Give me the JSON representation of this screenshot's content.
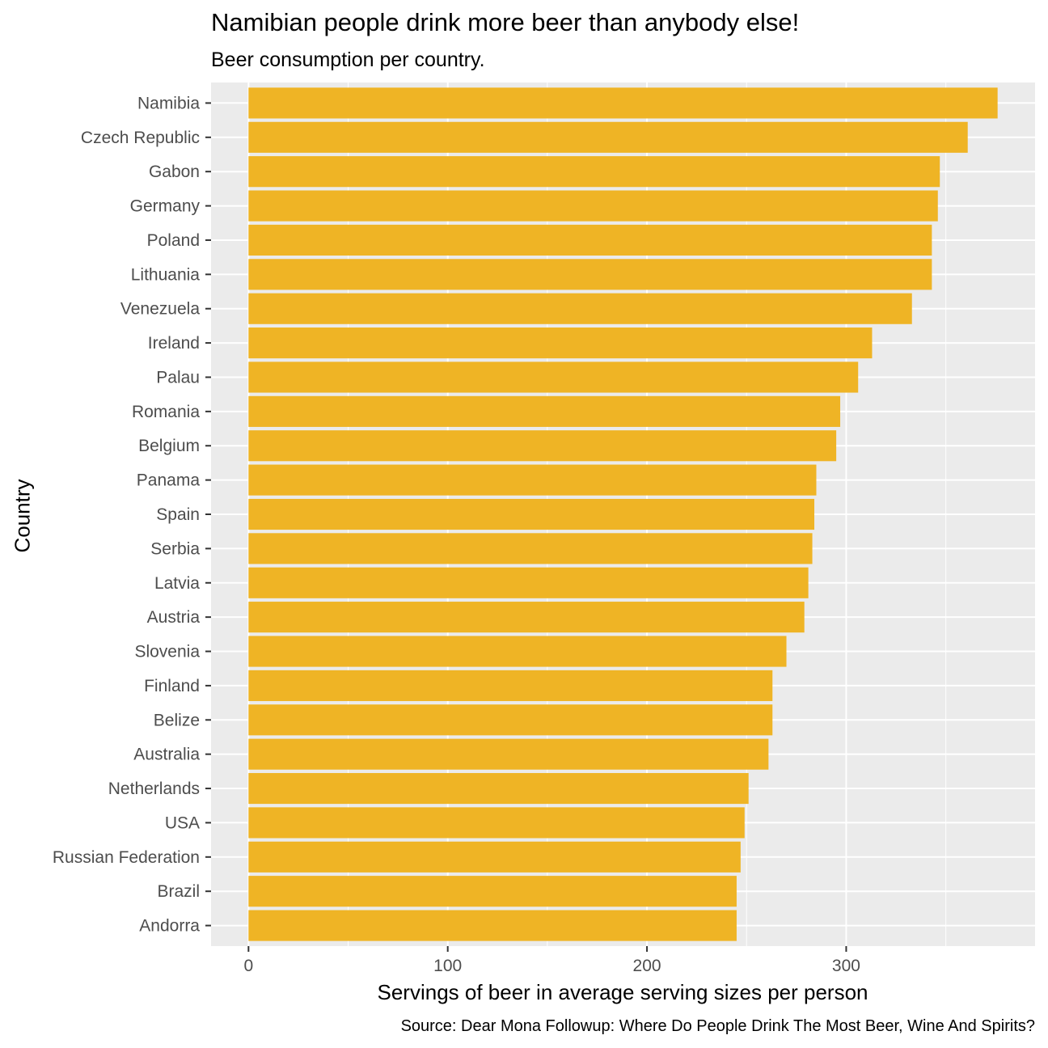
{
  "chart_data": {
    "type": "bar",
    "orientation": "horizontal",
    "title": "Namibian people drink more beer than anybody else!",
    "subtitle": "Beer consumption per country.",
    "xlabel": "Servings of beer in average serving sizes per person",
    "ylabel": "Country",
    "caption": "Source: Dear Mona Followup: Where Do People Drink The Most Beer, Wine And Spirits?",
    "categories": [
      "Namibia",
      "Czech Republic",
      "Gabon",
      "Germany",
      "Poland",
      "Lithuania",
      "Venezuela",
      "Ireland",
      "Palau",
      "Romania",
      "Belgium",
      "Panama",
      "Spain",
      "Serbia",
      "Latvia",
      "Austria",
      "Slovenia",
      "Finland",
      "Belize",
      "Australia",
      "Netherlands",
      "USA",
      "Russian Federation",
      "Brazil",
      "Andorra"
    ],
    "values": [
      376,
      361,
      347,
      346,
      343,
      343,
      333,
      313,
      306,
      297,
      295,
      285,
      284,
      283,
      281,
      279,
      270,
      263,
      263,
      261,
      251,
      249,
      247,
      245,
      245
    ],
    "xticks": [
      0,
      100,
      200,
      300
    ],
    "xlim": [
      -18.8,
      394.8
    ],
    "bar_color": "#EFB425",
    "panel_color": "#EBEBEB",
    "grid": true
  }
}
